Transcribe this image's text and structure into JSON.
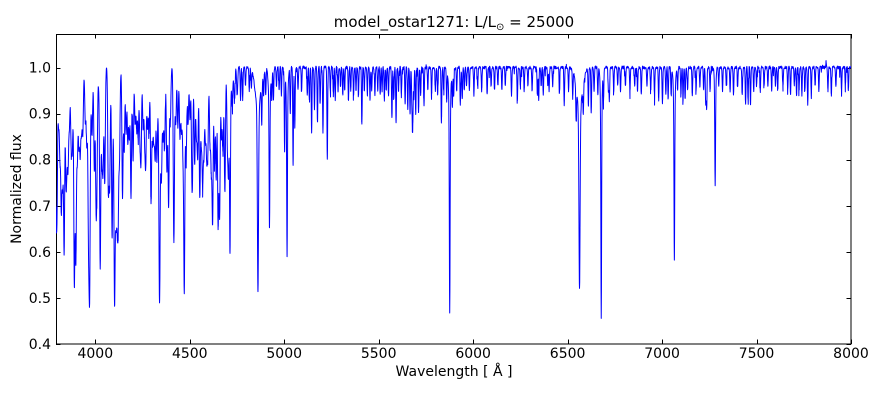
{
  "figure": {
    "title": "model_ostar1271: L/L⊙ = 25000",
    "title_prefix": "model_ostar1271: L/L",
    "title_sub": "⊙",
    "title_suffix": " = 25000",
    "xlabel": "Wavelength [ Å ]",
    "ylabel": "Normalized flux"
  },
  "chart_data": {
    "type": "line",
    "title": "model_ostar1271: L/L⊙ = 25000",
    "xlabel": "Wavelength [ Å ]",
    "ylabel": "Normalized flux",
    "series_color": "#0000ff",
    "background": "#ffffff",
    "grid": false,
    "xlim": [
      3792,
      8000
    ],
    "ylim": [
      0.4,
      1.0727
    ],
    "xticks": [
      4000,
      4500,
      5000,
      5500,
      6000,
      6500,
      7000,
      7500,
      8000
    ],
    "yticks": [
      0.4,
      0.5,
      0.6,
      0.7,
      0.8,
      0.9,
      1.0
    ],
    "continuum": 1.0,
    "noise_sigma": 0.004,
    "lines": [
      [
        3798,
        0.76,
        2.5,
        6
      ],
      [
        3835,
        0.6,
        2.8,
        8
      ],
      [
        3889,
        0.535,
        2.8,
        9
      ],
      [
        3970,
        0.528,
        3,
        10
      ],
      [
        4102,
        0.49,
        3.2,
        13
      ],
      [
        4340,
        0.488,
        3.2,
        14
      ],
      [
        4861,
        0.515,
        3,
        15
      ],
      [
        6563,
        0.52,
        3,
        16
      ],
      [
        4026,
        0.564,
        2.8,
        7
      ],
      [
        4471,
        0.52,
        2.8,
        8
      ],
      [
        4713,
        0.6,
        2.2,
        5
      ],
      [
        4922,
        0.65,
        2,
        6
      ],
      [
        5015,
        0.59,
        1.9,
        5
      ],
      [
        5047,
        0.79,
        1.9
      ],
      [
        5876,
        0.465,
        2,
        6
      ],
      [
        6678,
        0.455,
        1.9,
        5
      ],
      [
        7065,
        0.584,
        1.9,
        5
      ],
      [
        7281,
        0.744,
        1.9,
        4
      ],
      [
        3793,
        0.72
      ],
      [
        3806,
        0.9
      ],
      [
        3813,
        0.82
      ],
      [
        3820,
        0.72
      ],
      [
        3827,
        0.8
      ],
      [
        3845,
        0.81
      ],
      [
        3850,
        0.86
      ],
      [
        3856,
        0.8
      ],
      [
        3863,
        0.88
      ],
      [
        3872,
        0.86
      ],
      [
        3878,
        0.87
      ],
      [
        3897,
        0.64
      ],
      [
        3905,
        0.82
      ],
      [
        3913,
        0.84
      ],
      [
        3920,
        0.82
      ],
      [
        3927,
        0.87
      ],
      [
        3934,
        0.86
      ],
      [
        3947,
        0.89
      ],
      [
        3955,
        0.86
      ],
      [
        3964,
        0.72
      ],
      [
        3983,
        0.89
      ],
      [
        3995,
        0.78
      ],
      [
        4004,
        0.73
      ],
      [
        4009,
        0.82
      ],
      [
        4035,
        0.85
      ],
      [
        4041,
        0.8
      ],
      [
        4050,
        0.75
      ],
      [
        4069,
        0.74
      ],
      [
        4076,
        0.76
      ],
      [
        4089,
        0.68
      ],
      [
        4110,
        0.76
      ],
      [
        4116,
        0.78
      ],
      [
        4121,
        0.74
      ],
      [
        4128,
        0.82
      ],
      [
        4144,
        0.72
      ],
      [
        4153,
        0.82
      ],
      [
        4163,
        0.86
      ],
      [
        4172,
        0.84
      ],
      [
        4180,
        0.85
      ],
      [
        4189,
        0.72
      ],
      [
        4200,
        0.8
      ],
      [
        4211,
        0.88
      ],
      [
        4219,
        0.87
      ],
      [
        4227,
        0.85
      ],
      [
        4236,
        0.86
      ],
      [
        4242,
        0.81
      ],
      [
        4253,
        0.87
      ],
      [
        4261,
        0.86
      ],
      [
        4267,
        0.8
      ],
      [
        4276,
        0.87
      ],
      [
        4284,
        0.86
      ],
      [
        4295,
        0.71
      ],
      [
        4303,
        0.85
      ],
      [
        4310,
        0.86
      ],
      [
        4317,
        0.83
      ],
      [
        4326,
        0.85
      ],
      [
        4350,
        0.82
      ],
      [
        4359,
        0.88
      ],
      [
        4367,
        0.84
      ],
      [
        4379,
        0.78
      ],
      [
        4388,
        0.7
      ],
      [
        4397,
        0.88
      ],
      [
        4415,
        0.78
      ],
      [
        4417,
        0.82
      ],
      [
        4426,
        0.88
      ],
      [
        4437,
        0.87
      ],
      [
        4448,
        0.85
      ],
      [
        4456,
        0.88
      ],
      [
        4464,
        0.87
      ],
      [
        4481,
        0.84
      ],
      [
        4491,
        0.88
      ],
      [
        4501,
        0.89
      ],
      [
        4511,
        0.82
      ],
      [
        4515,
        0.84
      ],
      [
        4526,
        0.79
      ],
      [
        4535,
        0.86
      ],
      [
        4542,
        0.81
      ],
      [
        4553,
        0.72
      ],
      [
        4561,
        0.85
      ],
      [
        4568,
        0.76
      ],
      [
        4575,
        0.82
      ],
      [
        4583,
        0.85
      ],
      [
        4590,
        0.82
      ],
      [
        4596,
        0.84
      ],
      [
        4607,
        0.84
      ],
      [
        4614,
        0.8
      ],
      [
        4621,
        0.67
      ],
      [
        4631,
        0.79
      ],
      [
        4640,
        0.76
      ],
      [
        4650,
        0.66
      ],
      [
        4658,
        0.68
      ],
      [
        4668,
        0.85
      ],
      [
        4676,
        0.82
      ],
      [
        4686,
        0.73
      ],
      [
        4699,
        0.85
      ],
      [
        4705,
        0.8
      ],
      [
        4725,
        0.92
      ],
      [
        4736,
        0.93
      ],
      [
        4751,
        0.94
      ],
      [
        4769,
        0.93
      ],
      [
        4780,
        0.93
      ],
      [
        4795,
        0.96
      ],
      [
        4815,
        0.95
      ],
      [
        4826,
        0.96
      ],
      [
        4881,
        0.91
      ],
      [
        4891,
        0.95
      ],
      [
        4902,
        0.94
      ],
      [
        4934,
        0.94
      ],
      [
        4943,
        0.93
      ],
      [
        4959,
        0.96
      ],
      [
        4973,
        0.95
      ],
      [
        4985,
        0.94
      ],
      [
        5002,
        0.82
      ],
      [
        5032,
        0.9
      ],
      [
        5056,
        0.87
      ],
      [
        5073,
        0.95
      ],
      [
        5092,
        0.95
      ],
      [
        5122,
        0.94
      ],
      [
        5133,
        0.93
      ],
      [
        5145,
        0.86
      ],
      [
        5160,
        0.91
      ],
      [
        5176,
        0.88
      ],
      [
        5190,
        0.92
      ],
      [
        5205,
        0.86
      ],
      [
        5228,
        0.8
      ],
      [
        5244,
        0.95
      ],
      [
        5260,
        0.94
      ],
      [
        5270,
        0.93
      ],
      [
        5285,
        0.95
      ],
      [
        5298,
        0.96
      ],
      [
        5310,
        0.94
      ],
      [
        5320,
        0.95
      ],
      [
        5340,
        0.93
      ],
      [
        5352,
        0.95
      ],
      [
        5367,
        0.94
      ],
      [
        5380,
        0.95
      ],
      [
        5393,
        0.94
      ],
      [
        5411,
        0.88
      ],
      [
        5424,
        0.95
      ],
      [
        5440,
        0.94
      ],
      [
        5454,
        0.93
      ],
      [
        5463,
        0.95
      ],
      [
        5480,
        0.94
      ],
      [
        5495,
        0.95
      ],
      [
        5508,
        0.94
      ],
      [
        5518,
        0.95
      ],
      [
        5530,
        0.93
      ],
      [
        5540,
        0.95
      ],
      [
        5552,
        0.94
      ],
      [
        5570,
        0.89
      ],
      [
        5580,
        0.93
      ],
      [
        5592,
        0.88
      ],
      [
        5605,
        0.95
      ],
      [
        5620,
        0.94
      ],
      [
        5640,
        0.92
      ],
      [
        5654,
        0.91
      ],
      [
        5666,
        0.9
      ],
      [
        5676,
        0.92
      ],
      [
        5680,
        0.87
      ],
      [
        5686,
        0.93
      ],
      [
        5696,
        0.9
      ],
      [
        5711,
        0.9
      ],
      [
        5722,
        0.94
      ],
      [
        5740,
        0.92
      ],
      [
        5760,
        0.95
      ],
      [
        5780,
        0.94
      ],
      [
        5800,
        0.95
      ],
      [
        5812,
        0.94
      ],
      [
        5832,
        0.88
      ],
      [
        5844,
        0.95
      ],
      [
        5860,
        0.93
      ],
      [
        5890,
        0.92
      ],
      [
        5897,
        0.94
      ],
      [
        5913,
        0.95
      ],
      [
        5932,
        0.92
      ],
      [
        5942,
        0.93
      ],
      [
        5953,
        0.95
      ],
      [
        5965,
        0.96
      ],
      [
        5980,
        0.95
      ],
      [
        6004,
        0.94
      ],
      [
        6024,
        0.96
      ],
      [
        6045,
        0.95
      ],
      [
        6074,
        0.94
      ],
      [
        6095,
        0.96
      ],
      [
        6113,
        0.95
      ],
      [
        6131,
        0.96
      ],
      [
        6152,
        0.95
      ],
      [
        6170,
        0.96
      ],
      [
        6203,
        0.94
      ],
      [
        6234,
        0.93
      ],
      [
        6250,
        0.96
      ],
      [
        6270,
        0.95
      ],
      [
        6290,
        0.96
      ],
      [
        6312,
        0.95
      ],
      [
        6340,
        0.94
      ],
      [
        6347,
        0.93
      ],
      [
        6360,
        0.96
      ],
      [
        6371,
        0.94
      ],
      [
        6395,
        0.96
      ],
      [
        6402,
        0.95
      ],
      [
        6421,
        0.96
      ],
      [
        6456,
        0.94
      ],
      [
        6482,
        0.92
      ],
      [
        6505,
        0.95
      ],
      [
        6527,
        0.94
      ],
      [
        6545,
        0.93
      ],
      [
        6583,
        0.94
      ],
      [
        6610,
        0.92
      ],
      [
        6625,
        0.9
      ],
      [
        6640,
        0.95
      ],
      [
        6660,
        0.94
      ],
      [
        6690,
        0.93
      ],
      [
        6716,
        0.95
      ],
      [
        6721,
        0.93
      ],
      [
        6744,
        0.95
      ],
      [
        6765,
        0.96
      ],
      [
        6780,
        0.95
      ],
      [
        6806,
        0.96
      ],
      [
        6830,
        0.95
      ],
      [
        6855,
        0.96
      ],
      [
        6870,
        0.95
      ],
      [
        6890,
        0.94
      ],
      [
        6920,
        0.96
      ],
      [
        6940,
        0.95
      ],
      [
        6960,
        0.94
      ],
      [
        6982,
        0.93
      ],
      [
        7002,
        0.92
      ],
      [
        7020,
        0.94
      ],
      [
        7032,
        0.93
      ],
      [
        7048,
        0.94
      ],
      [
        7082,
        0.95
      ],
      [
        7100,
        0.94
      ],
      [
        7111,
        0.93
      ],
      [
        7122,
        0.93
      ],
      [
        7135,
        0.95
      ],
      [
        7160,
        0.94
      ],
      [
        7180,
        0.95
      ],
      [
        7200,
        0.96
      ],
      [
        7220,
        0.95
      ],
      [
        7231,
        0.92
      ],
      [
        7236,
        0.91
      ],
      [
        7254,
        0.95
      ],
      [
        7300,
        0.96
      ],
      [
        7320,
        0.95
      ],
      [
        7340,
        0.96
      ],
      [
        7360,
        0.95
      ],
      [
        7378,
        0.94
      ],
      [
        7400,
        0.96
      ],
      [
        7424,
        0.94
      ],
      [
        7442,
        0.92
      ],
      [
        7455,
        0.93
      ],
      [
        7468,
        0.92
      ],
      [
        7485,
        0.95
      ],
      [
        7500,
        0.96
      ],
      [
        7520,
        0.95
      ],
      [
        7540,
        0.96
      ],
      [
        7560,
        0.96
      ],
      [
        7580,
        0.95
      ],
      [
        7600,
        0.96
      ],
      [
        7612,
        0.95
      ],
      [
        7640,
        0.96
      ],
      [
        7665,
        0.95
      ],
      [
        7680,
        0.94
      ],
      [
        7700,
        0.96
      ],
      [
        7712,
        0.94
      ],
      [
        7725,
        0.95
      ],
      [
        7740,
        0.94
      ],
      [
        7756,
        0.95
      ],
      [
        7771,
        0.92
      ],
      [
        7790,
        0.94
      ],
      [
        7810,
        0.96
      ],
      [
        7830,
        0.95
      ],
      [
        7878,
        0.95
      ],
      [
        7896,
        0.94
      ],
      [
        7920,
        0.96
      ],
      [
        7950,
        0.95
      ],
      [
        7970,
        0.96
      ],
      [
        7986,
        0.95
      ],
      [
        6454,
        1.016,
        1.4
      ],
      [
        7868,
        1.012,
        1.4
      ]
    ]
  }
}
